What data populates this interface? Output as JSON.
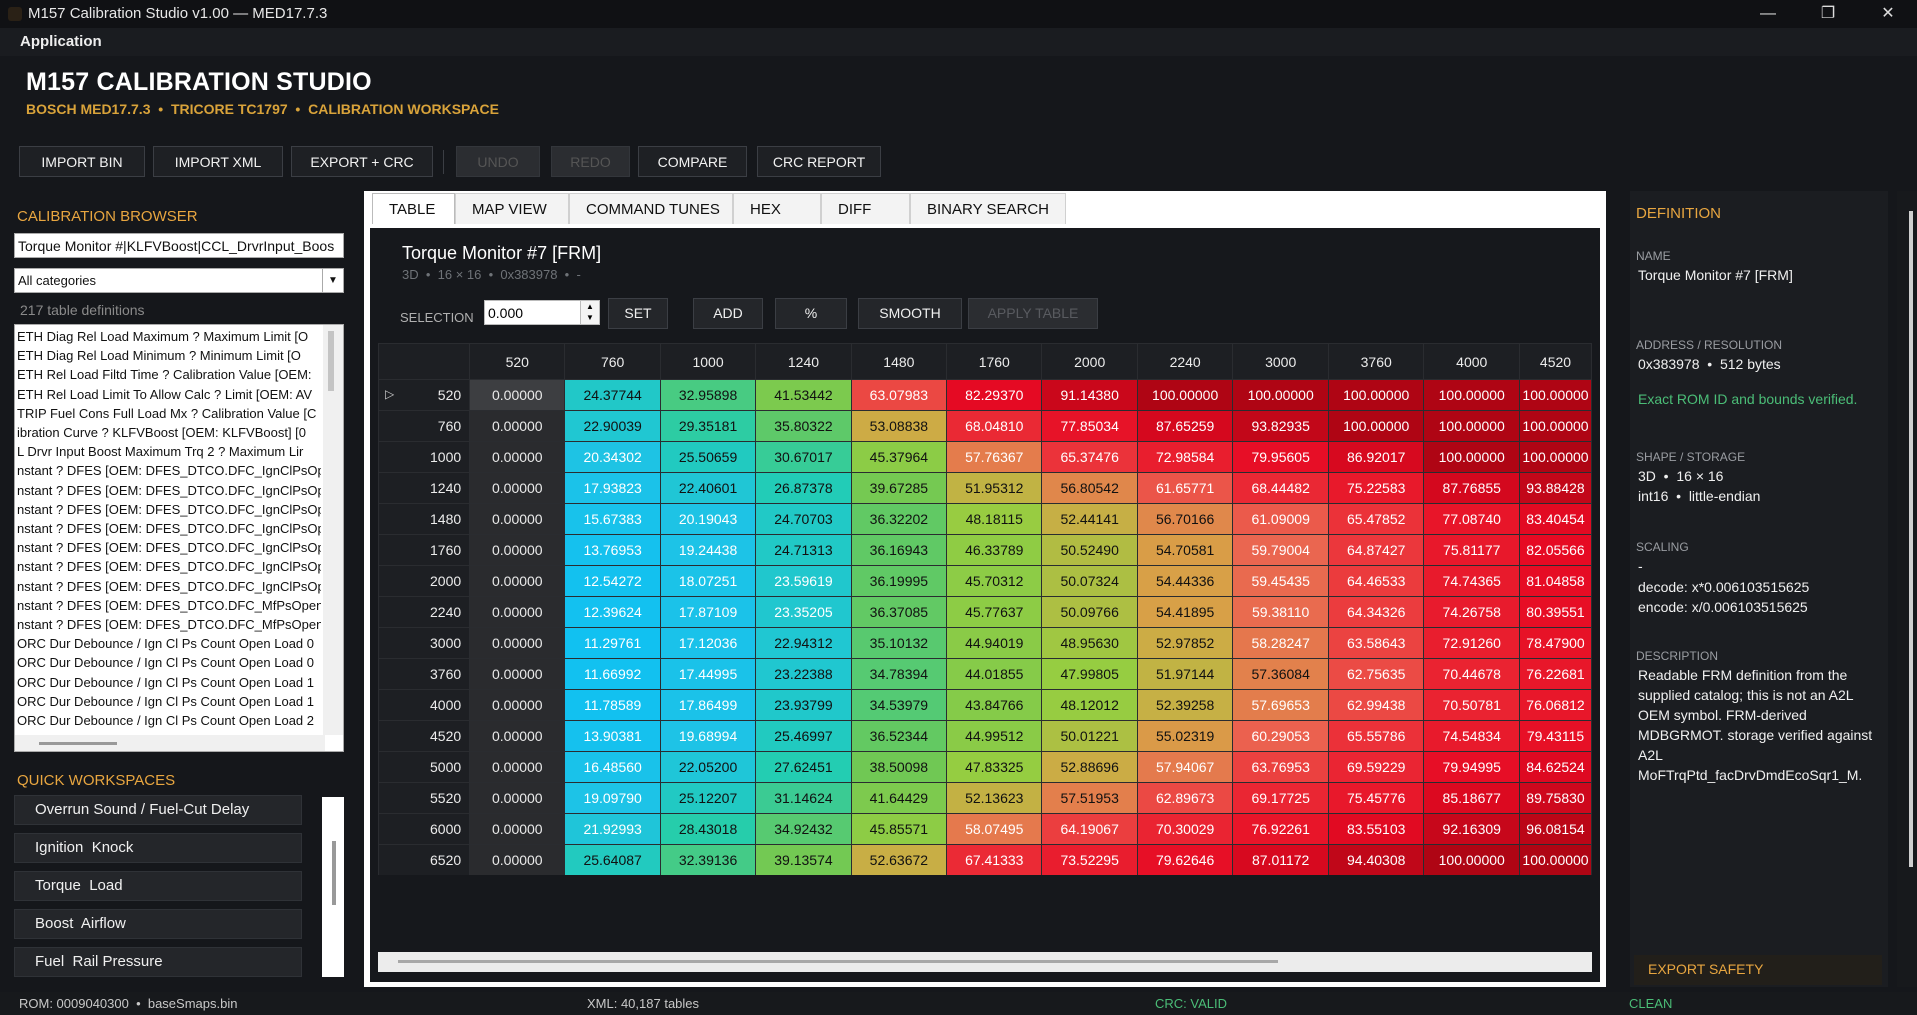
{
  "window": {
    "title": "M157 Calibration Studio v1.00 — MED17.7.3",
    "controls": {
      "minimize": "—",
      "restore": "❐",
      "close": "✕"
    }
  },
  "menu": {
    "application": "Application"
  },
  "header": {
    "title": "M157 CALIBRATION STUDIO",
    "subtitle": "BOSCH MED17.7.3  •  TRICORE TC1797  •  CALIBRATION WORKSPACE"
  },
  "toolbar": {
    "import_bin": "IMPORT BIN",
    "import_xml": "IMPORT XML",
    "export_crc": "EXPORT + CRC",
    "undo": "UNDO",
    "redo": "REDO",
    "compare": "COMPARE",
    "crc_report": "CRC REPORT"
  },
  "browser": {
    "title": "CALIBRATION BROWSER",
    "search_value": "Torque Monitor #|KLFVBoost|CCL_DrvrInput_Boos",
    "category": "All categories",
    "count": "217 table definitions",
    "items": [
      "ETH Diag Rel Load Maximum ? Maximum Limit [O",
      "ETH Diag Rel Load Minimum ? Minimum Limit [O",
      "ETH Rel Load Filtd Time ? Calibration Value [OEM:",
      "ETH Rel Load Limit To Allow Calc ? Limit [OEM: AV",
      "TRIP Fuel Cons Full Load Mx ? Calibration Value [C",
      "ibration Curve ? KLFVBoost [OEM: KLFVBoost]   [0",
      "L Drvr Input Boost Maximum Trq 2 ? Maximum Lir",
      "nstant ? DFES [OEM: DFES_DTCO.DFC_IgnClPsOpe",
      "nstant ? DFES [OEM: DFES_DTCO.DFC_IgnClPsOpe",
      "nstant ? DFES [OEM: DFES_DTCO.DFC_IgnClPsOpe",
      "nstant ? DFES [OEM: DFES_DTCO.DFC_IgnClPsOpe",
      "nstant ? DFES [OEM: DFES_DTCO.DFC_IgnClPsOpe",
      "nstant ? DFES [OEM: DFES_DTCO.DFC_IgnClPsOpe",
      "nstant ? DFES [OEM: DFES_DTCO.DFC_IgnClPsOpe",
      "nstant ? DFES [OEM: DFES_DTCO.DFC_MfPsOpenL",
      "nstant ? DFES [OEM: DFES_DTCO.DFC_MfPsOpenL",
      "ORC Dur Debounce / Ign Cl Ps Count Open Load 0",
      "ORC Dur Debounce / Ign Cl Ps Count Open Load 0",
      "ORC Dur Debounce / Ign Cl Ps Count Open Load 1",
      "ORC Dur Debounce / Ign Cl Ps Count Open Load 1",
      "ORC Dur Debounce / Ign Cl Ps Count Open Load 2"
    ]
  },
  "quick_workspaces": {
    "title": "QUICK WORKSPACES",
    "items": [
      "Overrun Sound / Fuel-Cut Delay",
      "Ignition  Knock",
      "Torque  Load",
      "Boost  Airflow",
      "Fuel  Rail Pressure"
    ]
  },
  "tabs": [
    "TABLE",
    "MAP VIEW",
    "COMMAND TUNES",
    "HEX",
    "DIFF",
    "BINARY SEARCH"
  ],
  "map": {
    "title": "Torque Monitor #7 [FRM]",
    "meta": "3D  •  16 × 16  •  0x383978  •  -",
    "selection_label": "SELECTION",
    "selection_value": "0.000",
    "actions": {
      "set": "SET",
      "add": "ADD",
      "percent": "%",
      "smooth": "SMOOTH",
      "apply_table": "APPLY TABLE"
    },
    "row_marker": "▷",
    "columns": [
      "520",
      "760",
      "1000",
      "1240",
      "1480",
      "1760",
      "2000",
      "2240",
      "3000",
      "3760",
      "4000",
      "4520"
    ],
    "rows": [
      "520",
      "760",
      "1000",
      "1240",
      "1480",
      "1760",
      "2000",
      "2240",
      "3000",
      "3760",
      "4000",
      "4520",
      "5000",
      "5520",
      "6000",
      "6520"
    ],
    "cells": [
      [
        "0.00000",
        "24.37744",
        "32.95898",
        "41.53442",
        "63.07983",
        "82.29370",
        "91.14380",
        "100.00000",
        "100.00000",
        "100.00000",
        "100.00000",
        "100.00000"
      ],
      [
        "0.00000",
        "22.90039",
        "29.35181",
        "35.80322",
        "53.08838",
        "68.04810",
        "77.85034",
        "87.65259",
        "93.82935",
        "100.00000",
        "100.00000",
        "100.00000"
      ],
      [
        "0.00000",
        "20.34302",
        "25.50659",
        "30.67017",
        "45.37964",
        "57.76367",
        "65.37476",
        "72.98584",
        "79.95605",
        "86.92017",
        "100.00000",
        "100.00000"
      ],
      [
        "0.00000",
        "17.93823",
        "22.40601",
        "26.87378",
        "39.67285",
        "51.95312",
        "56.80542",
        "61.65771",
        "68.44482",
        "75.22583",
        "87.76855",
        "93.88428"
      ],
      [
        "0.00000",
        "15.67383",
        "20.19043",
        "24.70703",
        "36.32202",
        "48.18115",
        "52.44141",
        "56.70166",
        "61.09009",
        "65.47852",
        "77.08740",
        "83.40454"
      ],
      [
        "0.00000",
        "13.76953",
        "19.24438",
        "24.71313",
        "36.16943",
        "46.33789",
        "50.52490",
        "54.70581",
        "59.79004",
        "64.87427",
        "75.81177",
        "82.05566"
      ],
      [
        "0.00000",
        "12.54272",
        "18.07251",
        "23.59619",
        "36.19995",
        "45.70312",
        "50.07324",
        "54.44336",
        "59.45435",
        "64.46533",
        "74.74365",
        "81.04858"
      ],
      [
        "0.00000",
        "12.39624",
        "17.87109",
        "23.35205",
        "36.37085",
        "45.77637",
        "50.09766",
        "54.41895",
        "59.38110",
        "64.34326",
        "74.26758",
        "80.39551"
      ],
      [
        "0.00000",
        "11.29761",
        "17.12036",
        "22.94312",
        "35.10132",
        "44.94019",
        "48.95630",
        "52.97852",
        "58.28247",
        "63.58643",
        "72.91260",
        "78.47900"
      ],
      [
        "0.00000",
        "11.66992",
        "17.44995",
        "23.22388",
        "34.78394",
        "44.01855",
        "47.99805",
        "51.97144",
        "57.36084",
        "62.75635",
        "70.44678",
        "76.22681"
      ],
      [
        "0.00000",
        "11.78589",
        "17.86499",
        "23.93799",
        "34.53979",
        "43.84766",
        "48.12012",
        "52.39258",
        "57.69653",
        "62.99438",
        "70.50781",
        "76.06812"
      ],
      [
        "0.00000",
        "13.90381",
        "19.68994",
        "25.46997",
        "36.52344",
        "44.99512",
        "50.01221",
        "55.02319",
        "60.29053",
        "65.55786",
        "74.54834",
        "79.43115"
      ],
      [
        "0.00000",
        "16.48560",
        "22.05200",
        "27.62451",
        "38.50098",
        "47.83325",
        "52.88696",
        "57.94067",
        "63.76953",
        "69.59229",
        "79.94995",
        "84.62524"
      ],
      [
        "0.00000",
        "19.09790",
        "25.12207",
        "31.14624",
        "41.64429",
        "52.13623",
        "57.51953",
        "62.89673",
        "69.17725",
        "75.45776",
        "85.18677",
        "89.75830"
      ],
      [
        "0.00000",
        "21.92993",
        "28.43018",
        "34.92432",
        "45.85571",
        "58.07495",
        "64.19067",
        "70.30029",
        "76.92261",
        "83.55103",
        "92.16309",
        "96.08154"
      ],
      [
        "0.00000",
        "25.64087",
        "32.39136",
        "39.13574",
        "52.63672",
        "67.41333",
        "73.52295",
        "79.62646",
        "87.01172",
        "94.40308",
        "100.00000",
        "100.00000"
      ]
    ]
  },
  "definition": {
    "title": "DEFINITION",
    "name_label": "NAME",
    "name": "Torque Monitor #7 [FRM]",
    "address_label": "ADDRESS / RESOLUTION",
    "address": "0x383978  •  512 bytes",
    "verified": "Exact ROM ID and bounds verified.",
    "shape_label": "SHAPE / STORAGE",
    "shape_line1": "3D  •  16 × 16",
    "shape_line2": "int16  •  little-endian",
    "scaling_label": "SCALING",
    "scaling_unit": "-",
    "decode": "decode: x*0.006103515625",
    "encode": "encode: x/0.006103515625",
    "description_label": "DESCRIPTION",
    "description": "Readable FRM definition from the supplied catalog; this is not an A2L OEM symbol. FRM-derived MDBGRMOT. storage verified against A2L MoFTrqPtd_facDrvDmdEcoSqr1_M.",
    "export_safety": "EXPORT SAFETY"
  },
  "status": {
    "rom": "ROM: 0009040300  •  baseSmaps.bin",
    "xml": "XML: 40,187 tables",
    "crc": "CRC: VALID",
    "state": "CLEAN"
  },
  "colors": {
    "accent": "#e8a640",
    "subtitle": "#d9a33a",
    "valid": "#4bbd77",
    "background": "#15171b"
  }
}
